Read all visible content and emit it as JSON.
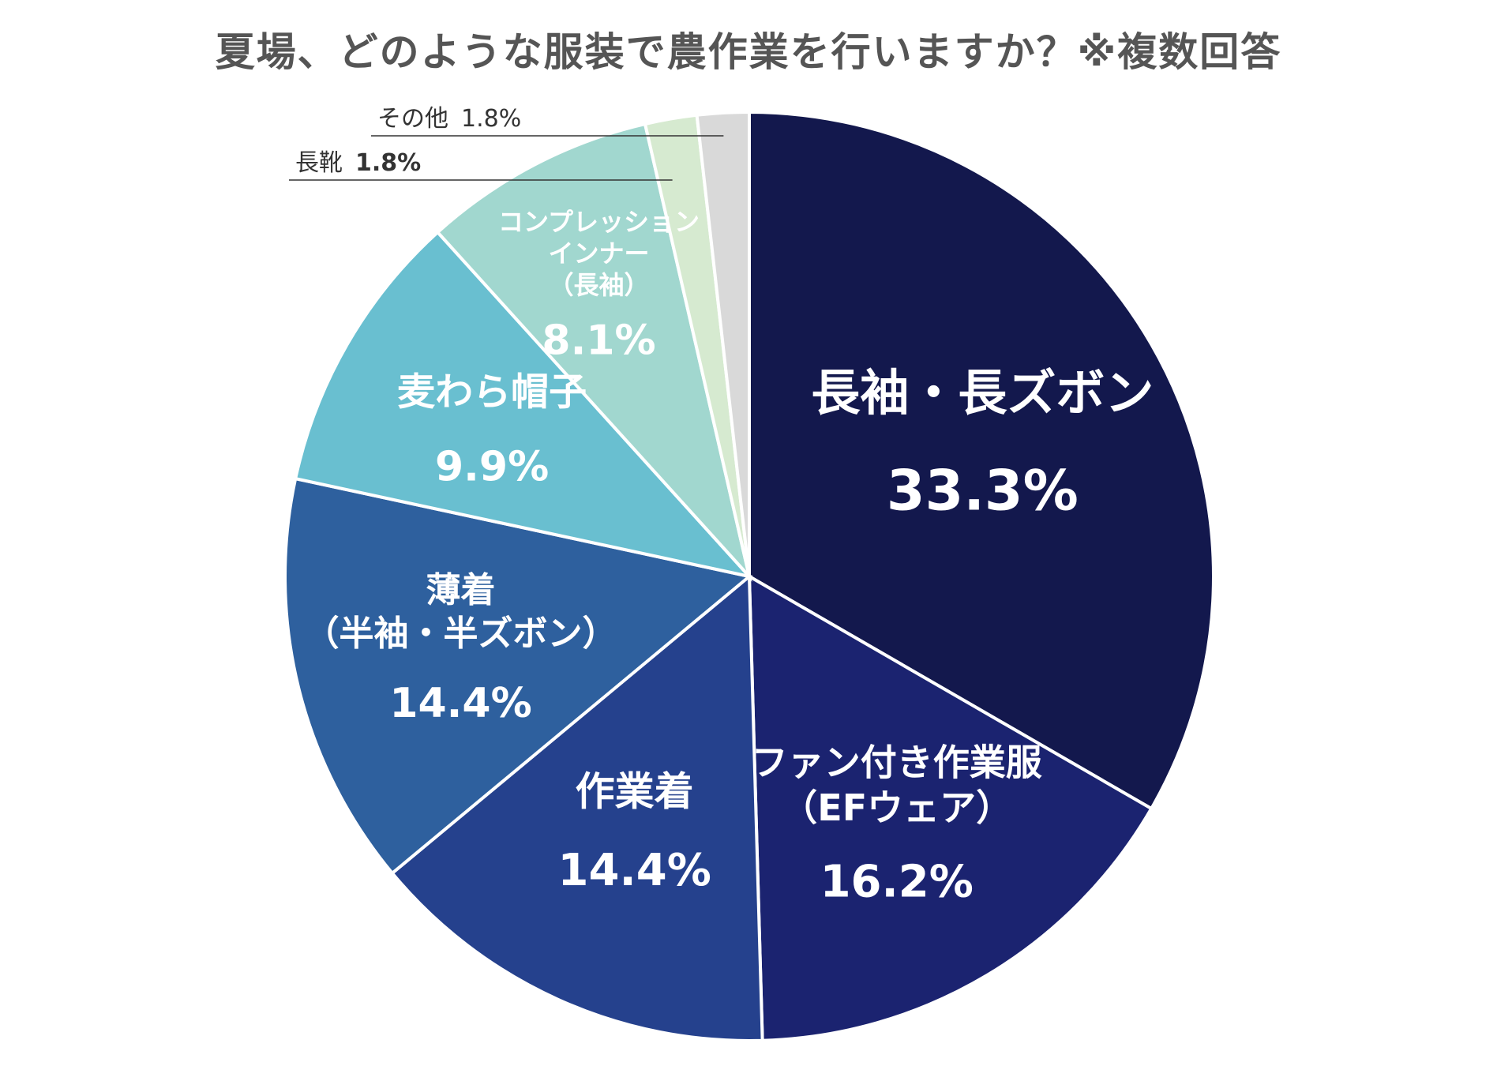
{
  "chart_data": {
    "type": "pie",
    "title": "夏場、どのような服装で農作業を行いますか？※複数回答",
    "slices": [
      {
        "name": "長袖・長ズボン",
        "lines": [
          "長袖・長ズボン"
        ],
        "value": 33.3,
        "display": "33.3%",
        "color": "#13184d",
        "text_color": "#ffffff"
      },
      {
        "name": "ファン付き作業服（EFウェア）",
        "lines": [
          "ファン付き作業服",
          "（EFウェア）"
        ],
        "value": 16.2,
        "display": "16.2%",
        "color": "#1b2370",
        "text_color": "#ffffff"
      },
      {
        "name": "作業着",
        "lines": [
          "作業着"
        ],
        "value": 14.4,
        "display": "14.4%",
        "color": "#25418d",
        "text_color": "#ffffff"
      },
      {
        "name": "薄着（半袖・半ズボン）",
        "lines": [
          "薄着",
          "（半袖・半ズボン）"
        ],
        "value": 14.4,
        "display": "14.4%",
        "color": "#2e609e",
        "text_color": "#ffffff"
      },
      {
        "name": "麦わら帽子",
        "lines": [
          "麦わら帽子"
        ],
        "value": 9.9,
        "display": "9.9%",
        "color": "#69bfd0",
        "text_color": "#ffffff"
      },
      {
        "name": "コンプレッションインナー（長袖）",
        "lines": [
          "コンプレッション",
          "インナー",
          "（長袖）"
        ],
        "value": 8.1,
        "display": "8.1%",
        "color": "#a1d7cf",
        "text_color": "#ffffff"
      },
      {
        "name": "長靴",
        "lines": [
          "長靴"
        ],
        "value": 1.8,
        "display": "1.8%",
        "color": "#d6ead0",
        "text_color": "#333333"
      },
      {
        "name": "その他",
        "lines": [
          "その他"
        ],
        "value": 1.8,
        "display": "1.8%",
        "color": "#d9d9d9",
        "text_color": "#333333"
      }
    ]
  }
}
